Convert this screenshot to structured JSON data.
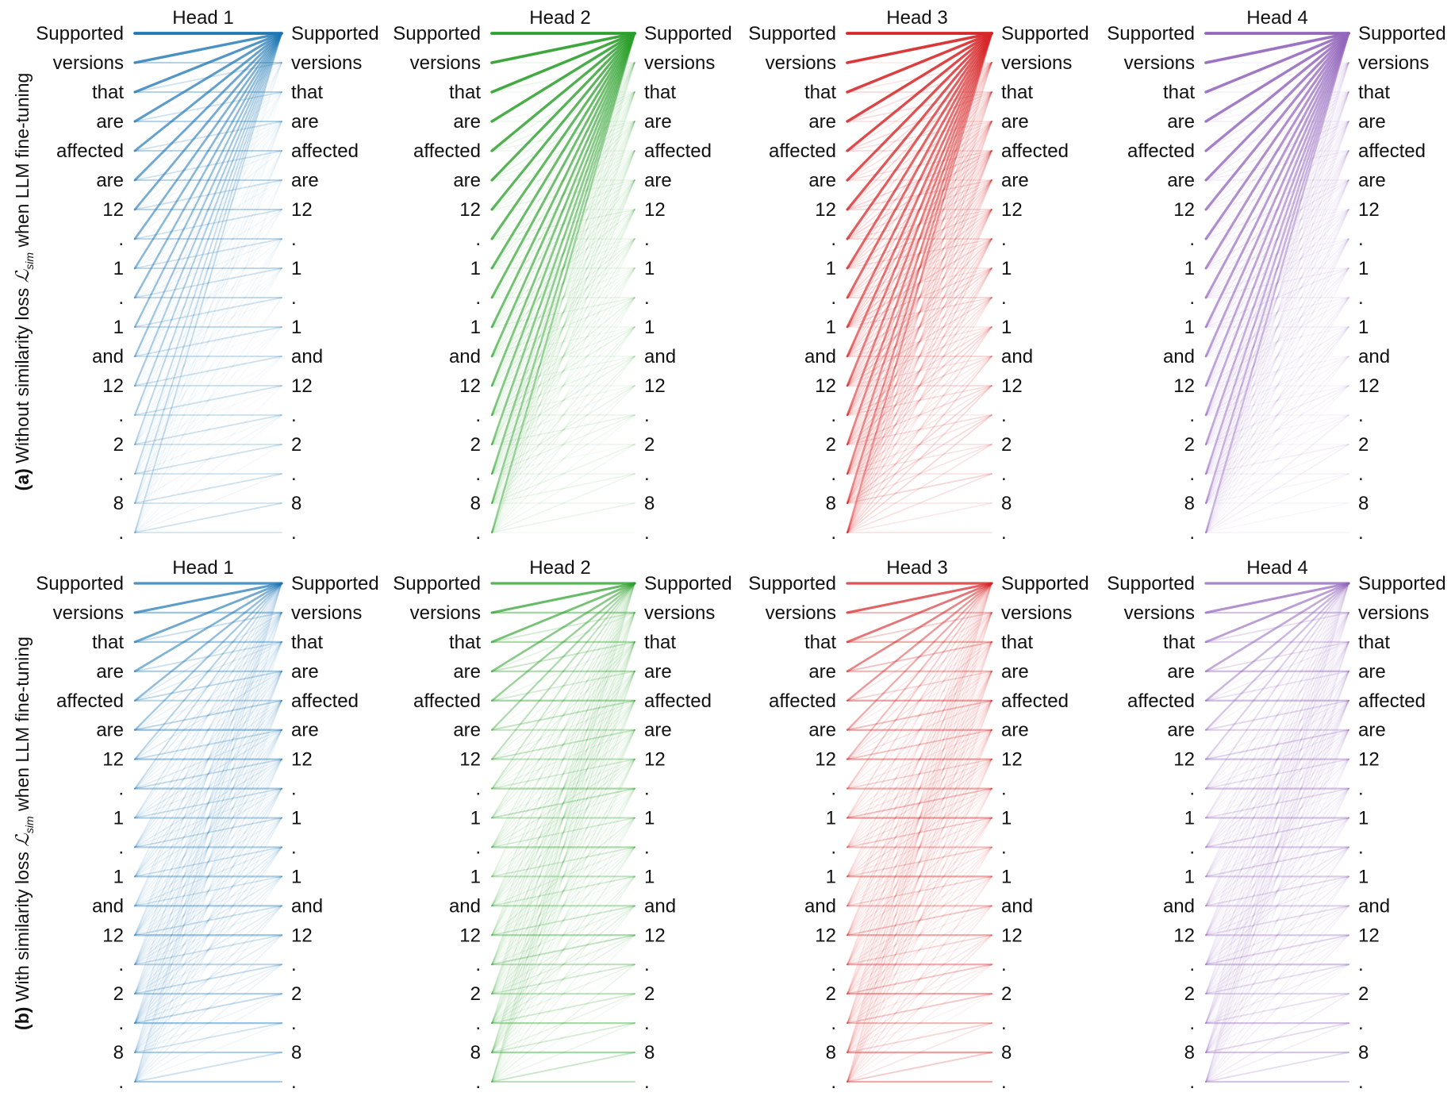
{
  "tokens": [
    "Supported",
    "versions",
    "that",
    "are",
    "affected",
    "are",
    "12",
    ".",
    "1",
    ".",
    "1",
    "and",
    "12",
    ".",
    "2",
    ".",
    "8",
    "."
  ],
  "heads": [
    {
      "title": "Head 1",
      "color": "#1f77b4"
    },
    {
      "title": "Head 2",
      "color": "#2ca02c"
    },
    {
      "title": "Head 3",
      "color": "#d62728"
    },
    {
      "title": "Head 4",
      "color": "#9467bd"
    }
  ],
  "rows": [
    {
      "label_bold": "(a)",
      "label_pre": "Without similarity loss",
      "label_sym": "ℒ",
      "label_sub": "sim",
      "label_post": "when LLM fine-tuning",
      "pattern": "sink"
    },
    {
      "label_bold": "(b)",
      "label_pre": "With similarity loss",
      "label_sym": "ℒ",
      "label_sub": "sim",
      "label_post": "when LLM fine-tuning",
      "pattern": "distributed"
    }
  ]
}
